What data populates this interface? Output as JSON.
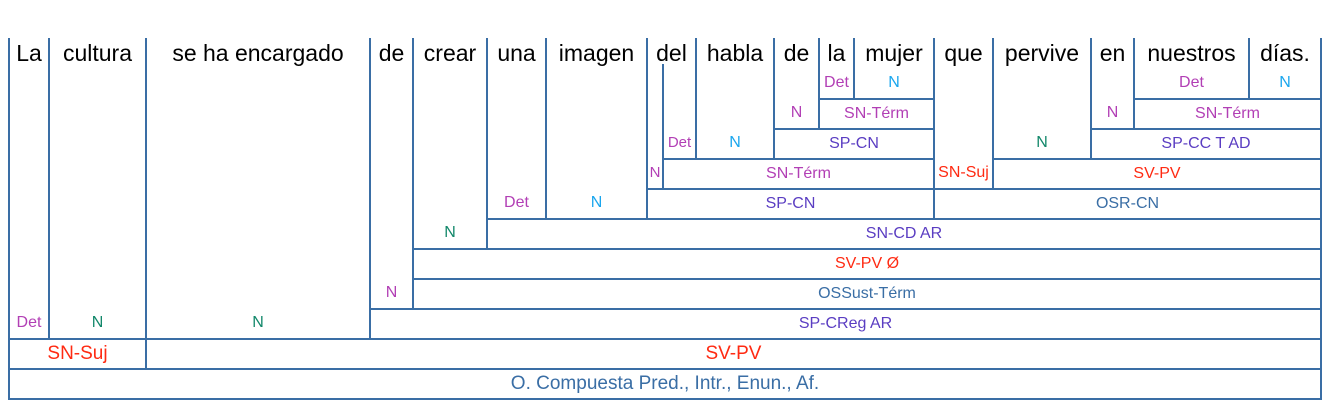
{
  "colors": {
    "line": "#3a6ea5",
    "det": "#b23fb5",
    "n_cyan": "#1aa6ee",
    "n_green": "#12876a",
    "n_magenta": "#b23fb5",
    "sp": "#5a3dc2",
    "sn_term": "#b23fb5",
    "sv": "#ff2a12",
    "oracion": "#3a6ea5"
  },
  "words": [
    {
      "text": "La",
      "label": "Det",
      "color": "#b23fb5"
    },
    {
      "text": "cultura",
      "label": "N",
      "color": "#12876a"
    },
    {
      "text": "se  ha  encargado",
      "label": "N",
      "color": "#12876a"
    },
    {
      "text": "de",
      "label": "N",
      "color": "#b23fb5"
    },
    {
      "text": "crear",
      "label": "N",
      "color": "#12876a"
    },
    {
      "text": "una",
      "label": "Det",
      "color": "#b23fb5"
    },
    {
      "text": "imagen",
      "label": "N",
      "color": "#1aa6ee"
    },
    {
      "text": "del",
      "label": "",
      "color": "#b23fb5"
    },
    {
      "text": "habla",
      "label": "N",
      "color": "#1aa6ee"
    },
    {
      "text": "de",
      "label": "N",
      "color": "#b23fb5"
    },
    {
      "text": "la",
      "label": "Det",
      "color": "#b23fb5"
    },
    {
      "text": "mujer",
      "label": "N",
      "color": "#1aa6ee"
    },
    {
      "text": "que",
      "label": "SN-Suj",
      "color": "#ff2a12"
    },
    {
      "text": "pervive",
      "label": "N",
      "color": "#12876a"
    },
    {
      "text": "en",
      "label": "N",
      "color": "#b23fb5"
    },
    {
      "text": "nuestros",
      "label": "Det",
      "color": "#b23fb5"
    },
    {
      "text": "días.",
      "label": "N",
      "color": "#1aa6ee"
    }
  ],
  "del_split": [
    {
      "label": "N",
      "color": "#b23fb5"
    },
    {
      "label": "Det",
      "color": "#b23fb5"
    }
  ],
  "phrases": [
    {
      "label": "SN-Térm",
      "color": "#b23fb5"
    },
    {
      "label": "SP-CN",
      "color": "#5a3dc2"
    },
    {
      "label": "SN-Térm",
      "color": "#b23fb5"
    },
    {
      "label": "SP-CN",
      "color": "#5a3dc2"
    },
    {
      "label": "SN-Térm",
      "color": "#b23fb5"
    },
    {
      "label": "SP-CC T AD",
      "color": "#5a3dc2"
    },
    {
      "label": "SV-PV",
      "color": "#ff2a12"
    },
    {
      "label": "OSR-CN",
      "color": "#3a6ea5"
    },
    {
      "label": "SN-CD AR",
      "color": "#5a3dc2"
    },
    {
      "label": "SV-PV Ø",
      "color": "#ff2a12"
    },
    {
      "label": "OSSust-Térm",
      "color": "#3a6ea5"
    },
    {
      "label": "SP-CReg AR",
      "color": "#5a3dc2"
    },
    {
      "label": "SN-Suj",
      "color": "#ff2a12"
    },
    {
      "label": "SV-PV",
      "color": "#ff2a12"
    },
    {
      "label": "O. Compuesta Pred., Intr., Enun., Af.",
      "color": "#3a6ea5"
    }
  ]
}
